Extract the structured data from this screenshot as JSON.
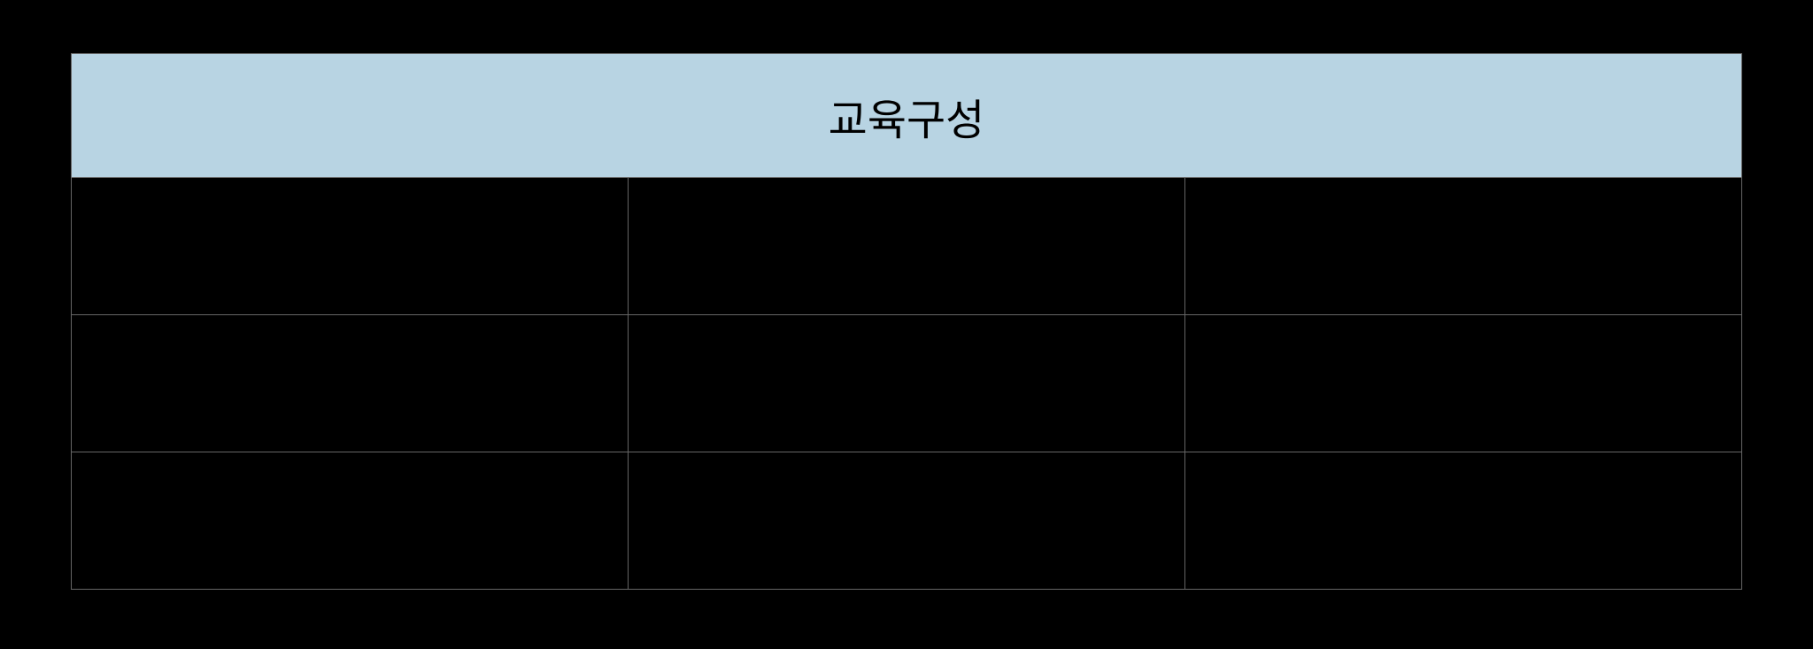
{
  "table": {
    "header": {
      "title": "교육구성"
    },
    "columns": [
      {
        "width_percent": 18
      },
      {
        "width_percent": 27
      },
      {
        "width_percent": 55
      }
    ],
    "rows": [
      {
        "cells": [
          "",
          "",
          ""
        ]
      },
      {
        "cells": [
          "",
          "",
          ""
        ]
      },
      {
        "cells": [
          "",
          "",
          ""
        ]
      }
    ],
    "colors": {
      "header_background": "#b8d4e3",
      "cell_background": "#000000",
      "border_color": "#666666",
      "page_background": "#000000",
      "header_text_color": "#000000"
    },
    "typography": {
      "header_fontsize": 48,
      "header_fontweight": "normal"
    },
    "layout": {
      "header_row_height": 140,
      "data_row_height": 155
    }
  }
}
